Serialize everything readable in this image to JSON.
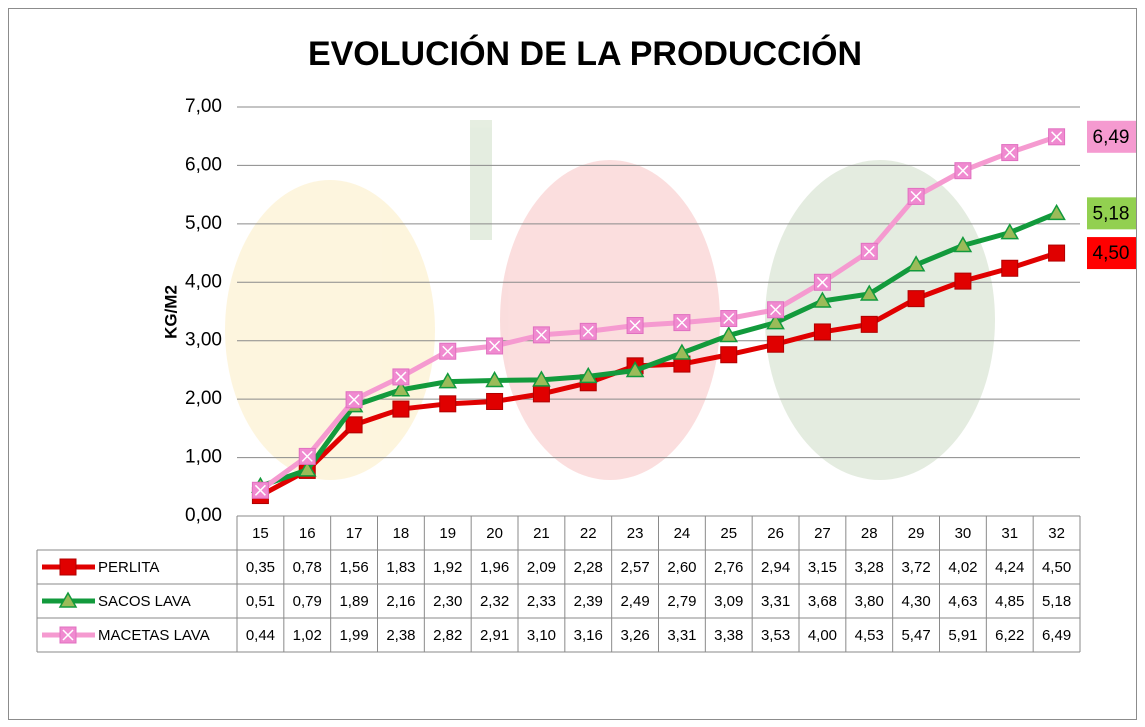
{
  "chart_data": {
    "type": "line",
    "title": "EVOLUCIÓN DE LA PRODUCCIÓN",
    "y_label": "KG/M2",
    "categories": [
      "15",
      "16",
      "17",
      "18",
      "19",
      "20",
      "21",
      "22",
      "23",
      "24",
      "25",
      "26",
      "27",
      "28",
      "29",
      "30",
      "31",
      "32"
    ],
    "series": [
      {
        "name": "PERLITA",
        "color": "#e00000",
        "marker": "square",
        "marker_color": "#e00000",
        "label_color": "#ff0000",
        "values": [
          0.35,
          0.78,
          1.56,
          1.83,
          1.92,
          1.96,
          2.09,
          2.28,
          2.57,
          2.6,
          2.76,
          2.94,
          3.15,
          3.28,
          3.72,
          4.02,
          4.24,
          4.5
        ],
        "value_labels": [
          "0,35",
          "0,78",
          "1,56",
          "1,83",
          "1,92",
          "1,96",
          "2,09",
          "2,28",
          "2,57",
          "2,60",
          "2,76",
          "2,94",
          "3,15",
          "3,28",
          "3,72",
          "4,02",
          "4,24",
          "4,50"
        ]
      },
      {
        "name": "SACOS LAVA",
        "color": "#129a3c",
        "marker": "triangle",
        "marker_color": "#9bbb59",
        "label_color": "#92d050",
        "values": [
          0.51,
          0.79,
          1.89,
          2.16,
          2.3,
          2.32,
          2.33,
          2.39,
          2.49,
          2.79,
          3.09,
          3.31,
          3.68,
          3.8,
          4.3,
          4.63,
          4.85,
          5.18
        ],
        "value_labels": [
          "0,51",
          "0,79",
          "1,89",
          "2,16",
          "2,30",
          "2,32",
          "2,33",
          "2,39",
          "2,49",
          "2,79",
          "3,09",
          "3,31",
          "3,68",
          "3,80",
          "4,30",
          "4,63",
          "4,85",
          "5,18"
        ]
      },
      {
        "name": "MACETAS LAVA",
        "color": "#f59ad0",
        "marker": "x-square",
        "marker_color": "#f08ad0",
        "label_color": "#f59ad0",
        "values": [
          0.44,
          1.02,
          1.99,
          2.38,
          2.82,
          2.91,
          3.1,
          3.16,
          3.26,
          3.31,
          3.38,
          3.53,
          4.0,
          4.53,
          5.47,
          5.91,
          6.22,
          6.49
        ],
        "value_labels": [
          "0,44",
          "1,02",
          "1,99",
          "2,38",
          "2,82",
          "2,91",
          "3,10",
          "3,16",
          "3,26",
          "3,31",
          "3,38",
          "3,53",
          "4,00",
          "4,53",
          "5,47",
          "5,91",
          "6,22",
          "6,49"
        ]
      }
    ],
    "ylim": [
      0,
      7
    ],
    "yticks": [
      {
        "value": 0,
        "label": "0,00"
      },
      {
        "value": 1,
        "label": "1,00"
      },
      {
        "value": 2,
        "label": "2,00"
      },
      {
        "value": 3,
        "label": "3,00"
      },
      {
        "value": 4,
        "label": "4,00"
      },
      {
        "value": 5,
        "label": "5,00"
      },
      {
        "value": 6,
        "label": "6,00"
      },
      {
        "value": 7,
        "label": "7,00"
      }
    ],
    "grid": true
  }
}
